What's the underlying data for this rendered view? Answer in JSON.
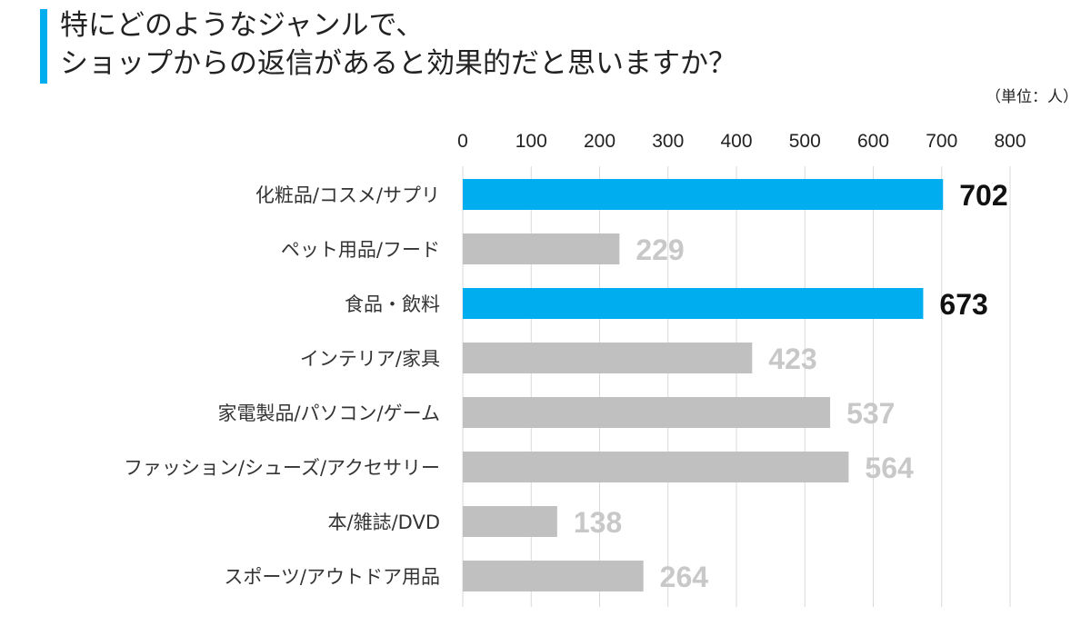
{
  "title": {
    "line1": "特にどのようなジャンルで、",
    "line2": "ショップからの返信があると効果的だと思いますか？"
  },
  "unit": "（単位：人）",
  "colors": {
    "accent": "#00aeef",
    "highlight_bar": "#00aeef",
    "normal_bar": "#c0c0c0",
    "normal_value_label": "#c8c8c8",
    "highlight_value_label": "#111111",
    "grid": "#d9d9d9"
  },
  "chart_data": {
    "type": "bar",
    "orientation": "horizontal",
    "categories": [
      "化粧品/コスメ/サプリ",
      "ペット用品/フード",
      "食品・飲料",
      "インテリア/家具",
      "家電製品/パソコン/ゲーム",
      "ファッション/シューズ/アクセサリー",
      "本/雑誌/DVD",
      "スポーツ/アウトドア用品"
    ],
    "values": [
      702,
      229,
      673,
      423,
      537,
      564,
      138,
      264
    ],
    "highlighted": [
      true,
      false,
      true,
      false,
      false,
      false,
      false,
      false
    ],
    "xlim": [
      0,
      800
    ],
    "xticks": [
      0,
      100,
      200,
      300,
      400,
      500,
      600,
      700,
      800
    ],
    "tick_position": "top",
    "grid": true
  }
}
